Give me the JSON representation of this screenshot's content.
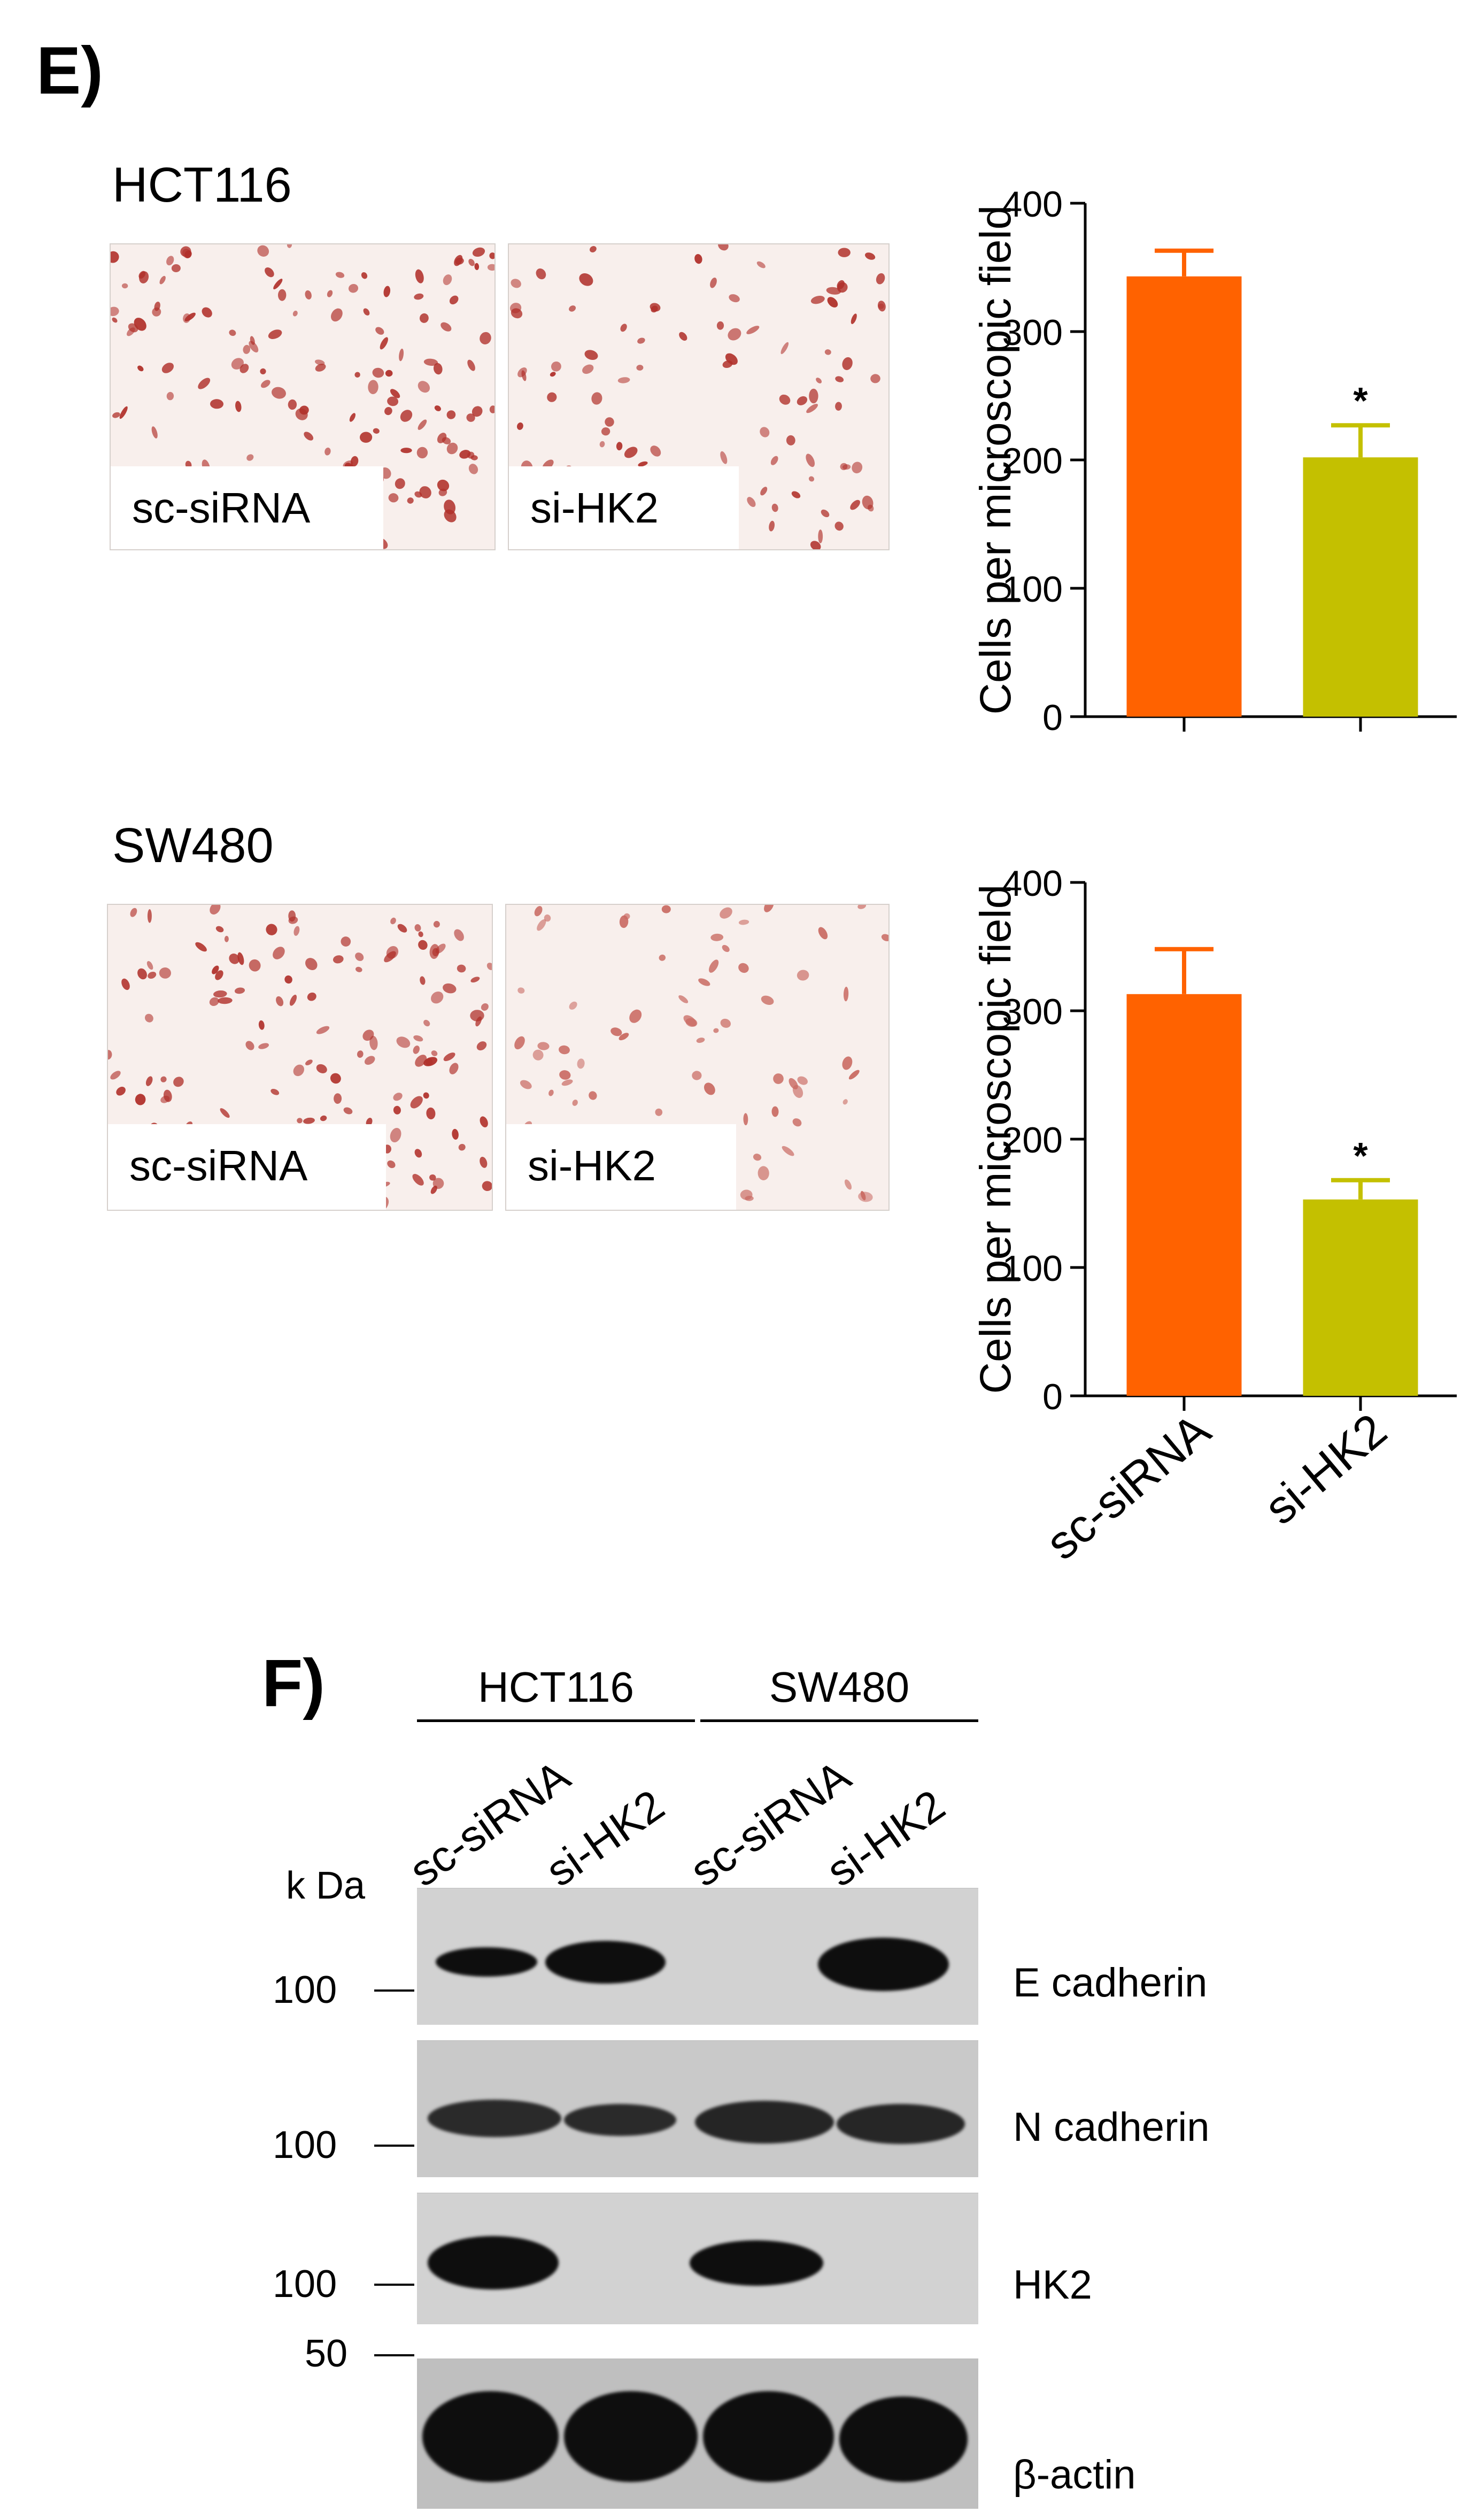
{
  "panel_e": {
    "letter": "E)",
    "hct116": {
      "cell_line": "HCT116",
      "label_left": "sc-siRNA",
      "label_right": "si-HK2"
    },
    "sw480": {
      "cell_line": "SW480",
      "label_left": "sc-siRNA",
      "label_right": "si-HK2"
    }
  },
  "chart_data": [
    {
      "type": "bar",
      "categories": [
        "sc-siRNA",
        "si-HK2"
      ],
      "values": [
        343,
        202
      ],
      "errors": [
        20,
        25
      ],
      "significance": [
        "",
        "*"
      ],
      "ylabel": "Cells per microscopic field",
      "ylim": [
        0,
        400
      ],
      "yticks": [
        0,
        100,
        200,
        300,
        400
      ],
      "colors": [
        "#ff6200",
        "#c4c000"
      ],
      "show_category_labels": false
    },
    {
      "type": "bar",
      "categories": [
        "sc-siRNA",
        "si-HK2"
      ],
      "values": [
        313,
        153
      ],
      "errors": [
        35,
        15
      ],
      "significance": [
        "",
        "*"
      ],
      "ylabel": "Cells per microscopic field",
      "ylim": [
        0,
        400
      ],
      "yticks": [
        0,
        100,
        200,
        300,
        400
      ],
      "colors": [
        "#ff6200",
        "#c4c000"
      ],
      "show_category_labels": true
    }
  ],
  "panel_f": {
    "letter": "F)",
    "groups": [
      "HCT116",
      "SW480"
    ],
    "lanes": [
      "sc-siRNA",
      "si-HK2",
      "sc-siRNA",
      "si-HK2"
    ],
    "kda_label": "k Da",
    "markers": [
      "100",
      "100",
      "100",
      "50"
    ],
    "proteins": [
      "E cadherin",
      "N cadherin",
      "HK2",
      "β-actin"
    ]
  }
}
